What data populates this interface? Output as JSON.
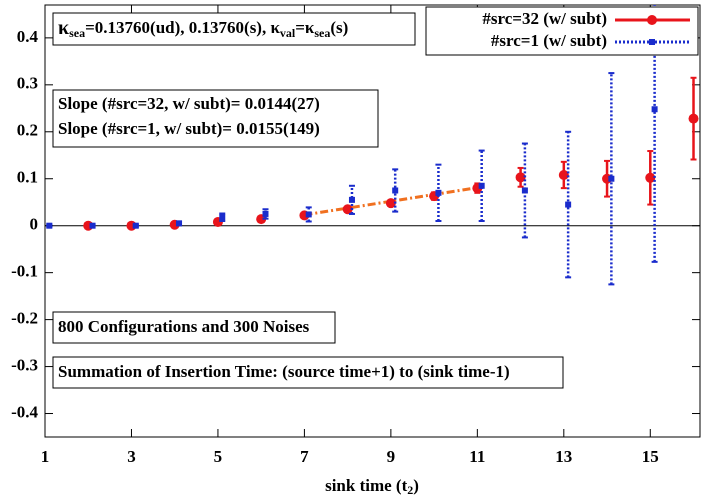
{
  "chart_data": {
    "type": "scatter",
    "xlabel": [
      "sink time (t",
      "2",
      ")"
    ],
    "xlim": [
      1,
      16.15
    ],
    "ylim": [
      -0.45,
      0.47
    ],
    "xticks": [
      1,
      3,
      5,
      7,
      9,
      11,
      13,
      15
    ],
    "yticks": [
      {
        "value": 0.4,
        "label": "0.4"
      },
      {
        "value": 0.3,
        "label": "0.3"
      },
      {
        "value": 0.2,
        "label": "0.2"
      },
      {
        "value": 0.1,
        "label": "0.1"
      },
      0,
      {
        "value": -0.1,
        "label": "-0.1"
      },
      {
        "value": -0.2,
        "label": "-0.2"
      },
      {
        "value": -0.3,
        "label": "-0.3"
      },
      {
        "value": -0.4,
        "label": "-0.4"
      }
    ],
    "legend": "upper right",
    "series": [
      {
        "name": "#src=32 (w/ subt)",
        "color": "#e8141b",
        "style": "solid",
        "x": [
          2,
          3,
          4,
          5,
          6,
          7,
          8,
          9,
          10,
          11,
          12,
          13,
          14,
          15,
          16
        ],
        "values": [
          0.0,
          0.0,
          0.002,
          0.008,
          0.014,
          0.022,
          0.035,
          0.048,
          0.063,
          0.08,
          0.103,
          0.108,
          0.1,
          0.102,
          0.228
        ],
        "errors": [
          0.002,
          0.002,
          0.002,
          0.003,
          0.003,
          0.004,
          0.005,
          0.006,
          0.008,
          0.01,
          0.02,
          0.028,
          0.038,
          0.057,
          0.087
        ]
      },
      {
        "name": "#src=1 (w/ subt)",
        "color": "#1a2ccc",
        "style": "dotted",
        "x": [
          1.1,
          2.1,
          3.1,
          4.1,
          5.1,
          6.1,
          7.1,
          8.1,
          9.1,
          10.1,
          11.1,
          12.1,
          13.1,
          14.1,
          15.1
        ],
        "values": [
          0.0,
          0.0,
          0.0,
          0.005,
          0.018,
          0.025,
          0.024,
          0.055,
          0.075,
          0.07,
          0.085,
          0.075,
          0.045,
          0.1,
          0.248
        ],
        "errors": [
          0.002,
          0.002,
          0.002,
          0.004,
          0.008,
          0.01,
          0.015,
          0.03,
          0.045,
          0.06,
          0.075,
          0.1,
          0.155,
          0.225,
          0.325
        ]
      }
    ],
    "fit": {
      "color": "#f07020",
      "x": [
        7,
        11
      ],
      "values": [
        0.023,
        0.081
      ]
    },
    "kappa_label": [
      "κ",
      "sea",
      "=0.13760(ud), 0.13760(s),  κ",
      "val",
      "=κ",
      "sea",
      "(s)"
    ],
    "slope_labels": [
      "Slope (#src=32, w/ subt)= 0.0144(27)",
      "Slope (#src=1,   w/ subt)= 0.0155(149)"
    ],
    "config_label": "800 Configurations and 300 Noises",
    "summation_label": "Summation of Insertion Time: (source time+1) to (sink time-1)"
  }
}
